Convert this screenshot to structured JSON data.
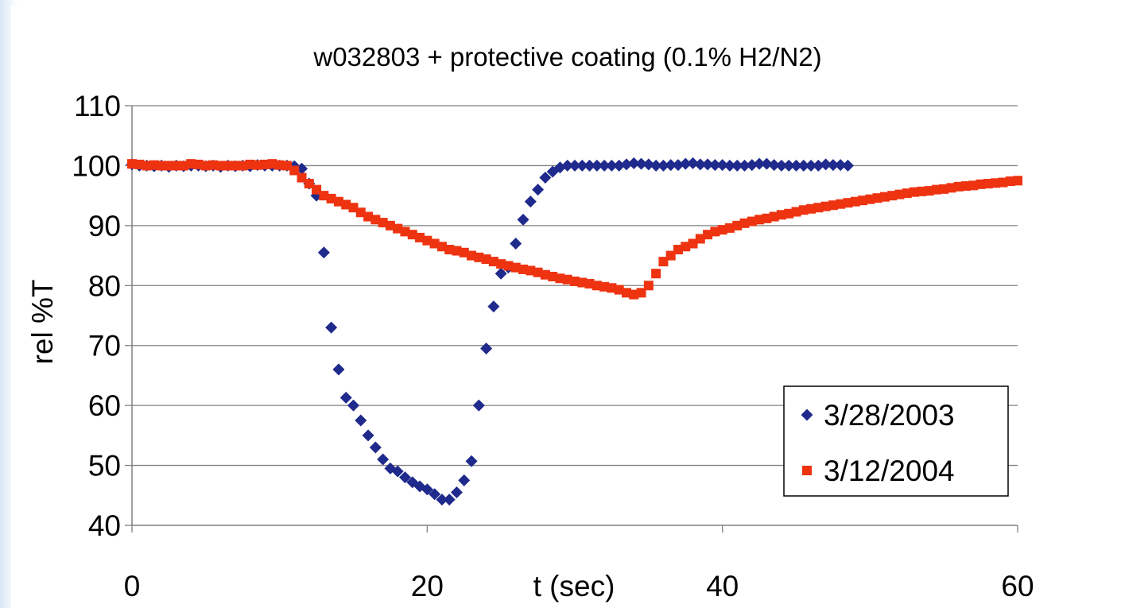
{
  "chart_data": {
    "type": "scatter",
    "title": "w032803 + protective coating (0.1% H2/N2)",
    "xlabel": "t (sec)",
    "ylabel": "rel %T",
    "xlim": [
      0,
      60
    ],
    "ylim": [
      40,
      110
    ],
    "xticks": [
      "0",
      "20",
      "40",
      "60"
    ],
    "yticks": [
      "40",
      "50",
      "60",
      "70",
      "80",
      "90",
      "100",
      "110"
    ],
    "grid": "horizontal",
    "legend_position": "bottom-right",
    "series": [
      {
        "name": "3/28/2003",
        "color": "#1f2a8c",
        "marker": "diamond",
        "points": [
          [
            0,
            100.2
          ],
          [
            0.5,
            100
          ],
          [
            1,
            100
          ],
          [
            1.5,
            99.9
          ],
          [
            2,
            100
          ],
          [
            2.5,
            99.8
          ],
          [
            3,
            100
          ],
          [
            3.5,
            99.9
          ],
          [
            4,
            100
          ],
          [
            4.5,
            100
          ],
          [
            5,
            99.9
          ],
          [
            5.5,
            100
          ],
          [
            6,
            99.8
          ],
          [
            6.5,
            100
          ],
          [
            7,
            99.9
          ],
          [
            7.5,
            100
          ],
          [
            8,
            99.9
          ],
          [
            8.5,
            100.1
          ],
          [
            9,
            100
          ],
          [
            9.5,
            100
          ],
          [
            10,
            100
          ],
          [
            10.5,
            100
          ],
          [
            11,
            99.9
          ],
          [
            11.5,
            99.5
          ],
          [
            12,
            97
          ],
          [
            12.5,
            95
          ],
          [
            13,
            85.5
          ],
          [
            13.5,
            73
          ],
          [
            14,
            66
          ],
          [
            14.5,
            61.3
          ],
          [
            15,
            60
          ],
          [
            15.5,
            57.5
          ],
          [
            16,
            55
          ],
          [
            16.5,
            53
          ],
          [
            17,
            51
          ],
          [
            17.5,
            49.5
          ],
          [
            18,
            49
          ],
          [
            18.5,
            48
          ],
          [
            19,
            47.2
          ],
          [
            19.5,
            46.5
          ],
          [
            20,
            46
          ],
          [
            20.5,
            45.2
          ],
          [
            21,
            44.3
          ],
          [
            21.5,
            44.3
          ],
          [
            22,
            45.5
          ],
          [
            22.5,
            47.5
          ],
          [
            23,
            50.7
          ],
          [
            23.5,
            60
          ],
          [
            24,
            69.5
          ],
          [
            24.5,
            76.5
          ],
          [
            25,
            82
          ],
          [
            25.5,
            83
          ],
          [
            26,
            87
          ],
          [
            26.5,
            91
          ],
          [
            27,
            94
          ],
          [
            27.5,
            96
          ],
          [
            28,
            98
          ],
          [
            28.5,
            99
          ],
          [
            29,
            99.7
          ],
          [
            29.5,
            100
          ],
          [
            30,
            100
          ],
          [
            30.5,
            100
          ],
          [
            31,
            100
          ],
          [
            31.5,
            100
          ],
          [
            32,
            100
          ],
          [
            32.5,
            100
          ],
          [
            33,
            100
          ],
          [
            33.5,
            100.2
          ],
          [
            34,
            100.4
          ],
          [
            34.5,
            100.3
          ],
          [
            35,
            100.2
          ],
          [
            35.5,
            100
          ],
          [
            36,
            100
          ],
          [
            36.5,
            100.1
          ],
          [
            37,
            100.1
          ],
          [
            37.5,
            100.3
          ],
          [
            38,
            100.4
          ],
          [
            38.5,
            100.2
          ],
          [
            39,
            100.2
          ],
          [
            39.5,
            100.1
          ],
          [
            40,
            100.1
          ],
          [
            40.5,
            100
          ],
          [
            41,
            100
          ],
          [
            41.5,
            100
          ],
          [
            42,
            100.1
          ],
          [
            42.5,
            100.3
          ],
          [
            43,
            100.3
          ],
          [
            43.5,
            100.1
          ],
          [
            44,
            100
          ],
          [
            44.5,
            100
          ],
          [
            45,
            100
          ],
          [
            45.5,
            100
          ],
          [
            46,
            100
          ],
          [
            46.5,
            100
          ],
          [
            47,
            100.2
          ],
          [
            47.5,
            100.1
          ],
          [
            48,
            100.1
          ],
          [
            48.5,
            100
          ]
        ]
      },
      {
        "name": "3/12/2004",
        "color": "#ee3311",
        "marker": "square",
        "points": [
          [
            0,
            100.3
          ],
          [
            0.5,
            100.2
          ],
          [
            1,
            100
          ],
          [
            1.5,
            100.1
          ],
          [
            2,
            100
          ],
          [
            2.5,
            100
          ],
          [
            3,
            100
          ],
          [
            3.5,
            100
          ],
          [
            4,
            100.3
          ],
          [
            4.5,
            100.2
          ],
          [
            5,
            100
          ],
          [
            5.5,
            100.1
          ],
          [
            6,
            100
          ],
          [
            6.5,
            100
          ],
          [
            7,
            100
          ],
          [
            7.5,
            100
          ],
          [
            8,
            100.2
          ],
          [
            8.5,
            100.1
          ],
          [
            9,
            100.2
          ],
          [
            9.5,
            100.3
          ],
          [
            10,
            100.1
          ],
          [
            10.5,
            100
          ],
          [
            11,
            99.2
          ],
          [
            11.5,
            98
          ],
          [
            12,
            97
          ],
          [
            12.5,
            96
          ],
          [
            13,
            95
          ],
          [
            13.5,
            94.5
          ],
          [
            14,
            94
          ],
          [
            14.5,
            93.5
          ],
          [
            15,
            93
          ],
          [
            15.5,
            92.2
          ],
          [
            16,
            91.5
          ],
          [
            16.5,
            91
          ],
          [
            17,
            90.5
          ],
          [
            17.5,
            90
          ],
          [
            18,
            89.5
          ],
          [
            18.5,
            89
          ],
          [
            19,
            88.5
          ],
          [
            19.5,
            88
          ],
          [
            20,
            87.5
          ],
          [
            20.5,
            87
          ],
          [
            21,
            86.5
          ],
          [
            21.5,
            86
          ],
          [
            22,
            85.8
          ],
          [
            22.5,
            85.5
          ],
          [
            23,
            85
          ],
          [
            23.5,
            84.7
          ],
          [
            24,
            84.4
          ],
          [
            24.5,
            84
          ],
          [
            25,
            83.6
          ],
          [
            25.5,
            83.3
          ],
          [
            26,
            83
          ],
          [
            26.5,
            82.7
          ],
          [
            27,
            82.5
          ],
          [
            27.5,
            82.2
          ],
          [
            28,
            81.8
          ],
          [
            28.5,
            81.5
          ],
          [
            29,
            81.2
          ],
          [
            29.5,
            81
          ],
          [
            30,
            80.7
          ],
          [
            30.5,
            80.5
          ],
          [
            31,
            80.3
          ],
          [
            31.5,
            80
          ],
          [
            32,
            79.8
          ],
          [
            32.5,
            79.6
          ],
          [
            33,
            79.3
          ],
          [
            33.5,
            78.8
          ],
          [
            34,
            78.5
          ],
          [
            34.5,
            78.8
          ],
          [
            35,
            80
          ],
          [
            35.5,
            82
          ],
          [
            36,
            84
          ],
          [
            36.5,
            85
          ],
          [
            37,
            86
          ],
          [
            37.5,
            86.5
          ],
          [
            38,
            87
          ],
          [
            38.5,
            87.8
          ],
          [
            39,
            88.5
          ],
          [
            39.5,
            89
          ],
          [
            40,
            89.3
          ],
          [
            40.5,
            89.6
          ],
          [
            41,
            90
          ],
          [
            41.5,
            90.4
          ],
          [
            42,
            90.7
          ],
          [
            42.5,
            91
          ],
          [
            43,
            91.2
          ],
          [
            43.5,
            91.5
          ],
          [
            44,
            91.8
          ],
          [
            44.5,
            92
          ],
          [
            45,
            92.3
          ],
          [
            45.5,
            92.6
          ],
          [
            46,
            92.8
          ],
          [
            46.5,
            93
          ],
          [
            47,
            93.2
          ],
          [
            47.5,
            93.4
          ],
          [
            48,
            93.6
          ],
          [
            48.5,
            93.8
          ],
          [
            49,
            94
          ],
          [
            49.5,
            94.2
          ],
          [
            50,
            94.4
          ],
          [
            50.5,
            94.6
          ],
          [
            51,
            94.8
          ],
          [
            51.5,
            95
          ],
          [
            52,
            95.2
          ],
          [
            52.5,
            95.4
          ],
          [
            53,
            95.6
          ],
          [
            53.5,
            95.7
          ],
          [
            54,
            95.8
          ],
          [
            54.5,
            96
          ],
          [
            55,
            96.1
          ],
          [
            55.5,
            96.3
          ],
          [
            56,
            96.5
          ],
          [
            56.5,
            96.6
          ],
          [
            57,
            96.7
          ],
          [
            57.5,
            96.9
          ],
          [
            58,
            97
          ],
          [
            58.5,
            97.1
          ],
          [
            59,
            97.2
          ],
          [
            59.5,
            97.4
          ],
          [
            60,
            97.5
          ]
        ]
      }
    ]
  }
}
